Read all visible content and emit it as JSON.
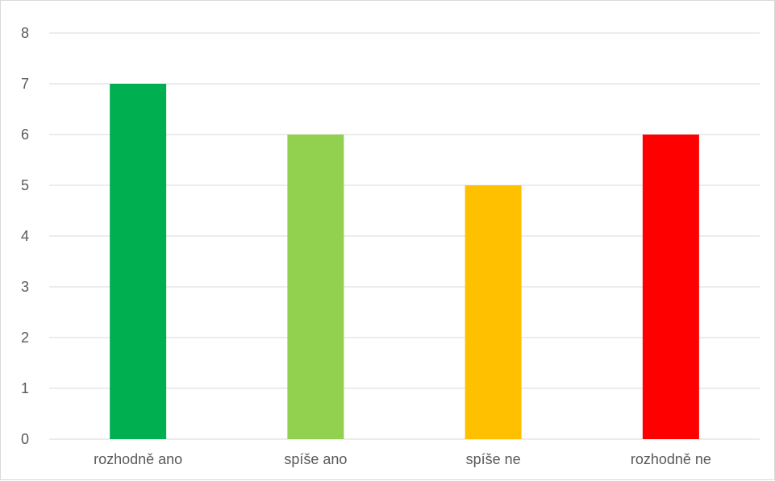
{
  "chart_data": {
    "type": "bar",
    "title": "",
    "xlabel": "",
    "ylabel": "",
    "categories": [
      "rozhodně ano",
      "spíše ano",
      "spíše ne",
      "rozhodně ne"
    ],
    "values": [
      7,
      6,
      5,
      6
    ],
    "bar_colors": [
      "#00b050",
      "#92d050",
      "#ffc000",
      "#ff0000"
    ],
    "ylim": [
      0,
      8
    ],
    "y_ticks": [
      "0",
      "1",
      "2",
      "3",
      "4",
      "5",
      "6",
      "7",
      "8"
    ],
    "grid": true,
    "legend": "none"
  },
  "colors": {
    "gridline": "#d9d9d9",
    "axis_text": "#595959",
    "border": "#d9d9d9"
  }
}
